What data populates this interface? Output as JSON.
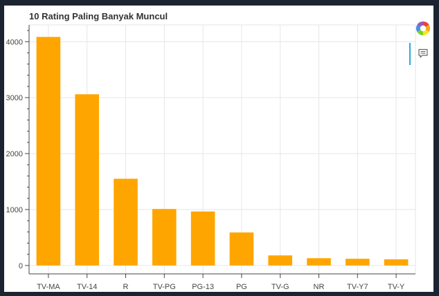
{
  "chart_data": {
    "type": "bar",
    "title": "10 Rating Paling Banyak Muncul",
    "xlabel": "",
    "ylabel": "",
    "categories": [
      "TV-MA",
      "TV-14",
      "R",
      "TV-PG",
      "PG-13",
      "PG",
      "TV-G",
      "NR",
      "TV-Y7",
      "TV-Y"
    ],
    "values": [
      4085,
      3060,
      1550,
      1010,
      965,
      590,
      180,
      130,
      120,
      110
    ],
    "ylim": [
      -150,
      4300
    ],
    "yticks": [
      0,
      1000,
      2000,
      3000,
      4000
    ],
    "ytick_labels": [
      "0",
      "1000",
      "2000",
      "3000",
      "4000"
    ],
    "grid": true,
    "legend": "none",
    "bar_color": "#ffa500"
  },
  "toolbar": {
    "logo_icon": "bokeh-logo-icon",
    "hover_icon": "hover-tooltip-icon"
  },
  "colors": {
    "background_outer": "#1b2430",
    "plot_background": "#ffffff",
    "grid": "#e6e6e6",
    "axis": "#444444",
    "bar": "#ffa500",
    "toolbar_active": "#26aae1"
  }
}
